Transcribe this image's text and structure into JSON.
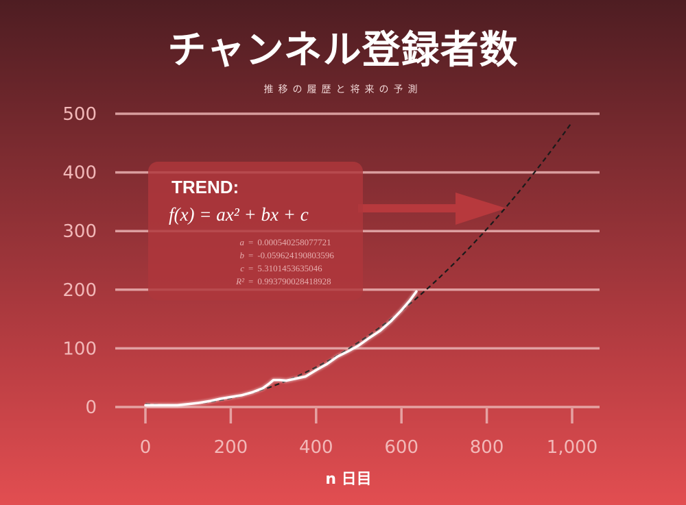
{
  "title": "チャンネル登録者数",
  "subtitle": "推移の履歴と将来の予測",
  "trend": {
    "heading": "TREND:",
    "formula": "f(x) = ax² + bx + c",
    "coefficients": [
      {
        "name": "a",
        "value": "0.000540258077721"
      },
      {
        "name": "b",
        "value": "-0.059624190803596"
      },
      {
        "name": "c",
        "value": "5.3101453635046"
      },
      {
        "name": "R²",
        "value": "0.993790028418928"
      }
    ]
  },
  "colors": {
    "grid": "#eab3b3",
    "actual": "#ffffff",
    "trend": "#1a1a1a",
    "arrow": "#b7393d"
  },
  "chart_data": {
    "type": "line",
    "xlabel": "n 日目",
    "ylabel": "",
    "xlim": [
      0,
      1000
    ],
    "ylim": [
      0,
      500
    ],
    "x_ticks": [
      0,
      200,
      400,
      600,
      800,
      1000
    ],
    "x_tick_labels": [
      "0",
      "200",
      "400",
      "600",
      "800",
      "1,000"
    ],
    "y_ticks": [
      0,
      100,
      200,
      300,
      400,
      500
    ],
    "y_tick_labels": [
      "0",
      "100",
      "200",
      "300",
      "400",
      "500"
    ],
    "grid": "horizontal",
    "series": [
      {
        "style": "solid-white",
        "x": [
          0,
          25,
          50,
          75,
          100,
          125,
          150,
          175,
          200,
          225,
          250,
          275,
          290,
          300,
          315,
          330,
          350,
          375,
          400,
          425,
          450,
          475,
          500,
          525,
          550,
          575,
          600,
          620,
          635
        ],
        "y": [
          3,
          3,
          3,
          3,
          5,
          7,
          10,
          14,
          17,
          20,
          25,
          32,
          40,
          46,
          46,
          45,
          48,
          52,
          63,
          73,
          86,
          95,
          105,
          118,
          130,
          146,
          165,
          182,
          197
        ]
      },
      {
        "style": "dashed-black",
        "function": "quadratic",
        "x_range": [
          0,
          1000
        ]
      }
    ]
  }
}
